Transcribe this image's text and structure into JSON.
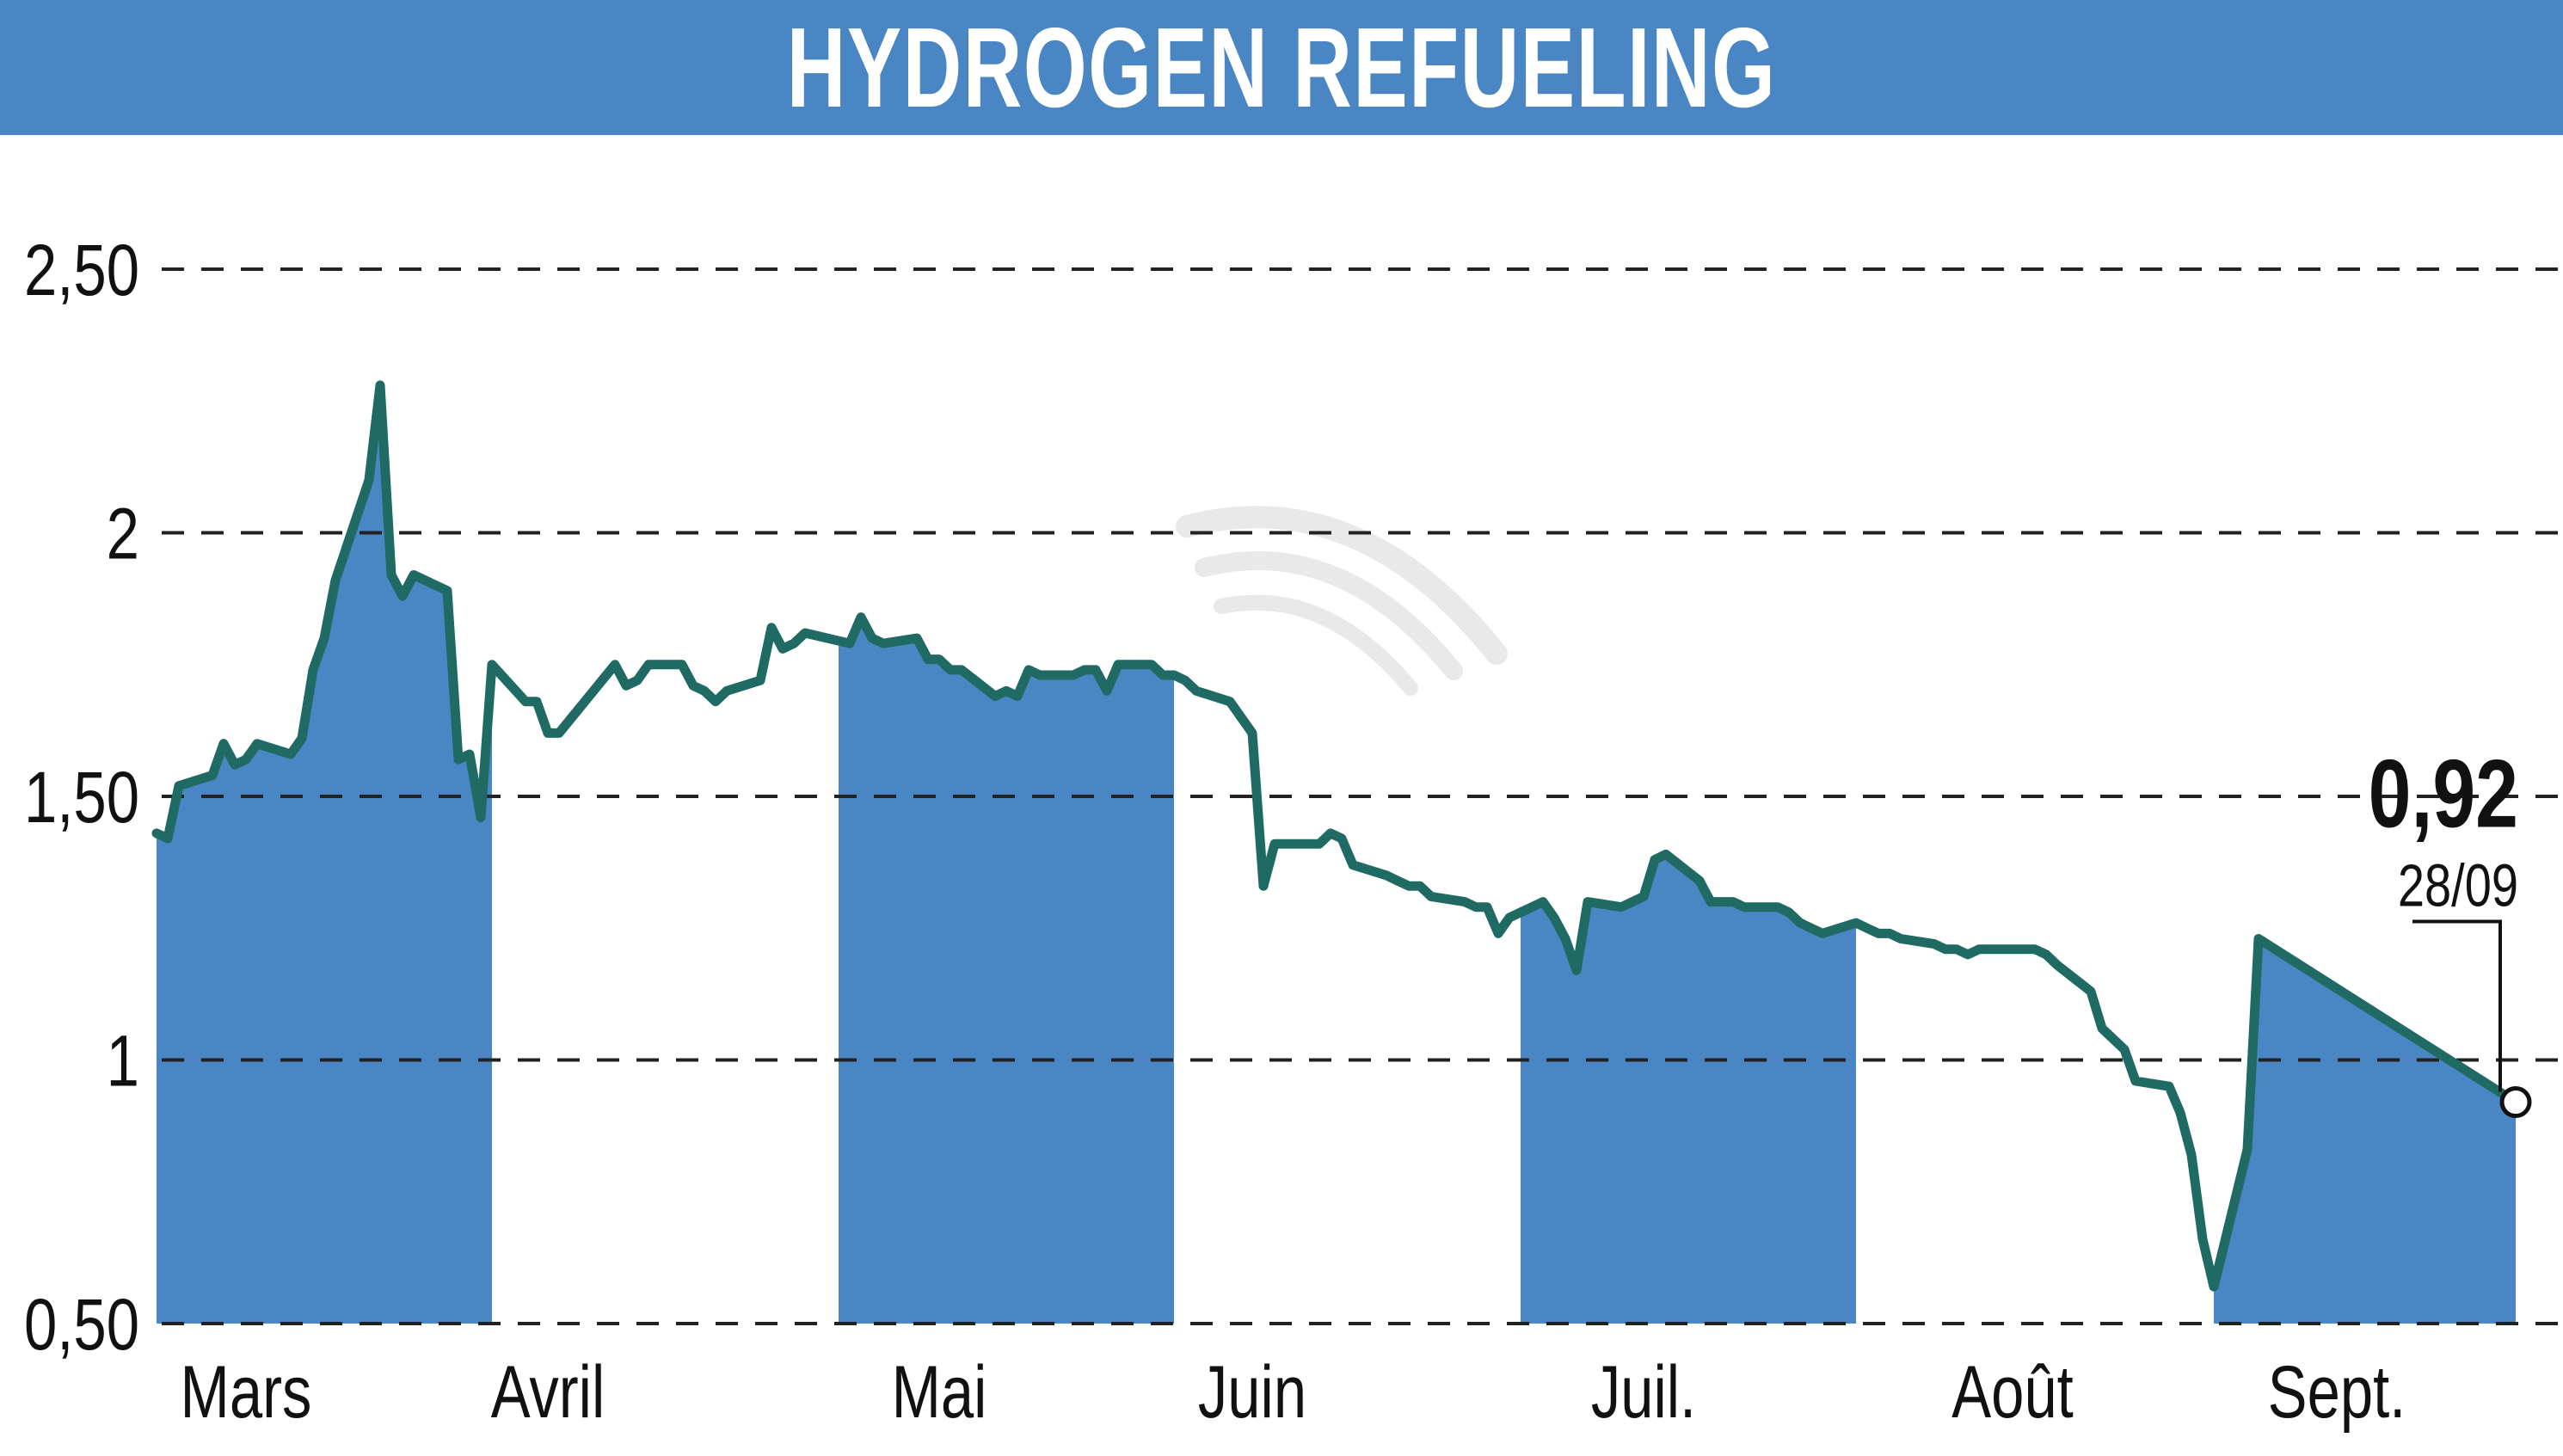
{
  "title": "HYDROGEN REFUELING",
  "colors": {
    "header": "#4a86c4",
    "band": "#4a86c4",
    "line": "#1f6b63",
    "grid": "#222222"
  },
  "chart_data": {
    "type": "line",
    "title": "HYDROGEN REFUELING",
    "xlabel": "",
    "ylabel": "",
    "ylim": [
      0.5,
      2.5
    ],
    "yticks": [
      {
        "value": 2.5,
        "label": "2,50"
      },
      {
        "value": 2.0,
        "label": "2"
      },
      {
        "value": 1.5,
        "label": "1,50"
      },
      {
        "value": 1.0,
        "label": "1"
      },
      {
        "value": 0.5,
        "label": "0,50"
      }
    ],
    "grid": "horizontal-dashed",
    "xlim": [
      "2023-03-01",
      "2023-09-29"
    ],
    "months": [
      {
        "label": "Mars",
        "date": "2023-03-09"
      },
      {
        "label": "Avril",
        "date": "2023-04-05"
      },
      {
        "label": "Mai",
        "date": "2023-05-10"
      },
      {
        "label": "Juin",
        "date": "2023-06-07"
      },
      {
        "label": "Juil.",
        "date": "2023-07-12"
      },
      {
        "label": "Août",
        "date": "2023-08-14"
      },
      {
        "label": "Sept.",
        "date": "2023-09-12"
      }
    ],
    "shaded_months": [
      [
        "2023-03-01",
        "2023-03-31"
      ],
      [
        "2023-05-01",
        "2023-05-31"
      ],
      [
        "2023-07-01",
        "2023-07-31"
      ],
      [
        "2023-09-01",
        "2023-09-28"
      ]
    ],
    "last": {
      "value": "0,92",
      "date": "28/09"
    },
    "series": [
      {
        "points": [
          [
            "2023-03-01",
            1.43
          ],
          [
            "2023-03-02",
            1.42
          ],
          [
            "2023-03-03",
            1.52
          ],
          [
            "2023-03-06",
            1.54
          ],
          [
            "2023-03-07",
            1.6
          ],
          [
            "2023-03-08",
            1.56
          ],
          [
            "2023-03-09",
            1.57
          ],
          [
            "2023-03-10",
            1.6
          ],
          [
            "2023-03-13",
            1.58
          ],
          [
            "2023-03-14",
            1.61
          ],
          [
            "2023-03-15",
            1.74
          ],
          [
            "2023-03-16",
            1.8
          ],
          [
            "2023-03-17",
            1.91
          ],
          [
            "2023-03-20",
            2.1
          ],
          [
            "2023-03-21",
            2.28
          ],
          [
            "2023-03-22",
            1.92
          ],
          [
            "2023-03-23",
            1.88
          ],
          [
            "2023-03-24",
            1.92
          ],
          [
            "2023-03-27",
            1.89
          ],
          [
            "2023-03-28",
            1.57
          ],
          [
            "2023-03-29",
            1.58
          ],
          [
            "2023-03-30",
            1.46
          ],
          [
            "2023-03-31",
            1.75
          ],
          [
            "2023-04-03",
            1.68
          ],
          [
            "2023-04-04",
            1.68
          ],
          [
            "2023-04-05",
            1.62
          ],
          [
            "2023-04-06",
            1.62
          ],
          [
            "2023-04-11",
            1.75
          ],
          [
            "2023-04-12",
            1.71
          ],
          [
            "2023-04-13",
            1.72
          ],
          [
            "2023-04-14",
            1.75
          ],
          [
            "2023-04-17",
            1.75
          ],
          [
            "2023-04-18",
            1.71
          ],
          [
            "2023-04-19",
            1.7
          ],
          [
            "2023-04-20",
            1.68
          ],
          [
            "2023-04-21",
            1.7
          ],
          [
            "2023-04-24",
            1.72
          ],
          [
            "2023-04-25",
            1.82
          ],
          [
            "2023-04-26",
            1.78
          ],
          [
            "2023-04-27",
            1.79
          ],
          [
            "2023-04-28",
            1.81
          ],
          [
            "2023-05-02",
            1.79
          ],
          [
            "2023-05-03",
            1.84
          ],
          [
            "2023-05-04",
            1.8
          ],
          [
            "2023-05-05",
            1.79
          ],
          [
            "2023-05-08",
            1.8
          ],
          [
            "2023-05-09",
            1.76
          ],
          [
            "2023-05-10",
            1.76
          ],
          [
            "2023-05-11",
            1.74
          ],
          [
            "2023-05-12",
            1.74
          ],
          [
            "2023-05-15",
            1.69
          ],
          [
            "2023-05-16",
            1.7
          ],
          [
            "2023-05-17",
            1.69
          ],
          [
            "2023-05-18",
            1.74
          ],
          [
            "2023-05-19",
            1.73
          ],
          [
            "2023-05-22",
            1.73
          ],
          [
            "2023-05-23",
            1.74
          ],
          [
            "2023-05-24",
            1.74
          ],
          [
            "2023-05-25",
            1.7
          ],
          [
            "2023-05-26",
            1.75
          ],
          [
            "2023-05-29",
            1.75
          ],
          [
            "2023-05-30",
            1.73
          ],
          [
            "2023-05-31",
            1.73
          ],
          [
            "2023-06-01",
            1.72
          ],
          [
            "2023-06-02",
            1.7
          ],
          [
            "2023-06-05",
            1.68
          ],
          [
            "2023-06-06",
            1.65
          ],
          [
            "2023-06-07",
            1.62
          ],
          [
            "2023-06-08",
            1.33
          ],
          [
            "2023-06-09",
            1.41
          ],
          [
            "2023-06-12",
            1.41
          ],
          [
            "2023-06-13",
            1.41
          ],
          [
            "2023-06-14",
            1.43
          ],
          [
            "2023-06-15",
            1.42
          ],
          [
            "2023-06-16",
            1.37
          ],
          [
            "2023-06-19",
            1.35
          ],
          [
            "2023-06-20",
            1.34
          ],
          [
            "2023-06-21",
            1.33
          ],
          [
            "2023-06-22",
            1.33
          ],
          [
            "2023-06-23",
            1.31
          ],
          [
            "2023-06-26",
            1.3
          ],
          [
            "2023-06-27",
            1.29
          ],
          [
            "2023-06-28",
            1.29
          ],
          [
            "2023-06-29",
            1.24
          ],
          [
            "2023-06-30",
            1.27
          ],
          [
            "2023-07-03",
            1.3
          ],
          [
            "2023-07-04",
            1.27
          ],
          [
            "2023-07-05",
            1.23
          ],
          [
            "2023-07-06",
            1.17
          ],
          [
            "2023-07-07",
            1.3
          ],
          [
            "2023-07-10",
            1.29
          ],
          [
            "2023-07-11",
            1.3
          ],
          [
            "2023-07-12",
            1.31
          ],
          [
            "2023-07-13",
            1.38
          ],
          [
            "2023-07-14",
            1.39
          ],
          [
            "2023-07-17",
            1.34
          ],
          [
            "2023-07-18",
            1.3
          ],
          [
            "2023-07-19",
            1.3
          ],
          [
            "2023-07-20",
            1.3
          ],
          [
            "2023-07-21",
            1.29
          ],
          [
            "2023-07-24",
            1.29
          ],
          [
            "2023-07-25",
            1.28
          ],
          [
            "2023-07-26",
            1.26
          ],
          [
            "2023-07-27",
            1.25
          ],
          [
            "2023-07-28",
            1.24
          ],
          [
            "2023-07-31",
            1.26
          ],
          [
            "2023-08-01",
            1.25
          ],
          [
            "2023-08-02",
            1.24
          ],
          [
            "2023-08-03",
            1.24
          ],
          [
            "2023-08-04",
            1.23
          ],
          [
            "2023-08-07",
            1.22
          ],
          [
            "2023-08-08",
            1.21
          ],
          [
            "2023-08-09",
            1.21
          ],
          [
            "2023-08-10",
            1.2
          ],
          [
            "2023-08-11",
            1.21
          ],
          [
            "2023-08-14",
            1.21
          ],
          [
            "2023-08-15",
            1.21
          ],
          [
            "2023-08-16",
            1.21
          ],
          [
            "2023-08-17",
            1.2
          ],
          [
            "2023-08-18",
            1.18
          ],
          [
            "2023-08-21",
            1.13
          ],
          [
            "2023-08-22",
            1.06
          ],
          [
            "2023-08-23",
            1.04
          ],
          [
            "2023-08-24",
            1.02
          ],
          [
            "2023-08-25",
            0.96
          ],
          [
            "2023-08-28",
            0.95
          ],
          [
            "2023-08-29",
            0.9
          ],
          [
            "2023-08-30",
            0.82
          ],
          [
            "2023-08-31",
            0.66
          ],
          [
            "2023-09-01",
            0.57
          ],
          [
            "2023-09-04",
            0.83
          ],
          [
            "2023-09-05",
            1.23
          ],
          [
            "2023-09-28",
            0.92
          ]
        ]
      }
    ]
  }
}
